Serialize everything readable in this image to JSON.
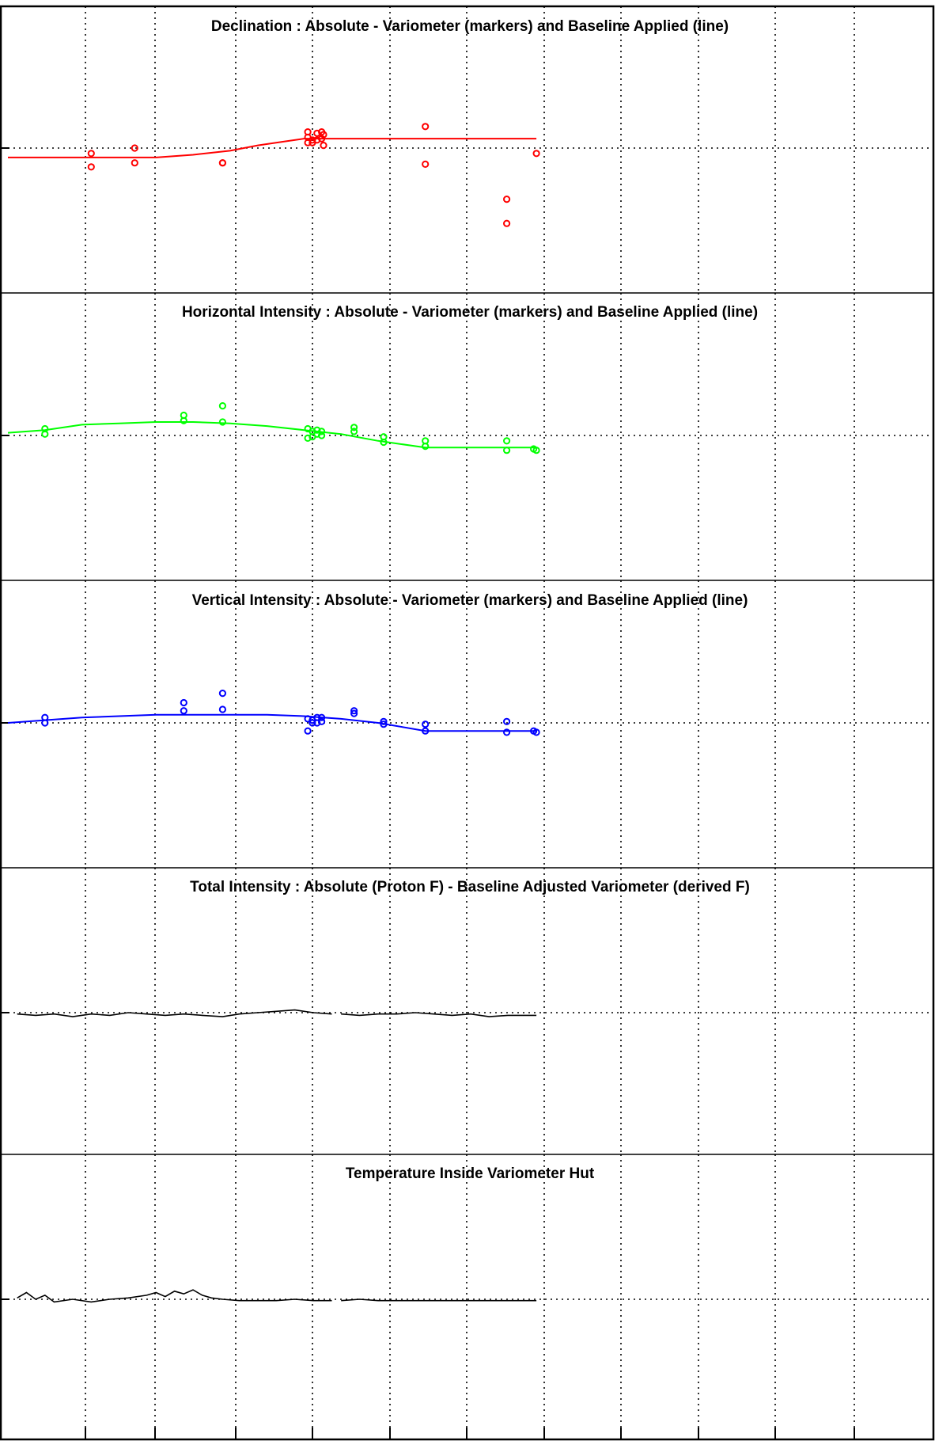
{
  "chart_data": [
    {
      "type": "scatter",
      "title": "Declination : Absolute - Variometer (markers) and Baseline Applied (line)",
      "xlabel": "",
      "ylabel": "",
      "x_range": [
        0,
        1
      ],
      "y_range": [
        -1,
        1
      ],
      "reference_y": 0.0,
      "grid": true,
      "color": "#ff0000",
      "markers": {
        "name": "",
        "x": [
          0.09,
          0.09,
          0.137,
          0.137,
          0.232,
          0.232,
          0.324,
          0.324,
          0.324,
          0.329,
          0.329,
          0.334,
          0.334,
          0.339,
          0.339,
          0.341,
          0.341,
          0.451,
          0.451,
          0.539,
          0.539,
          0.571
        ],
        "y": [
          -0.04,
          -0.14,
          0.0,
          -0.11,
          -0.11,
          -0.11,
          0.12,
          0.08,
          0.04,
          0.06,
          0.04,
          0.11,
          0.06,
          0.12,
          0.07,
          0.1,
          0.02,
          0.16,
          -0.12,
          -0.38,
          -0.56,
          -0.04
        ]
      },
      "line": {
        "name": "",
        "x": [
          0.0,
          0.06,
          0.12,
          0.16,
          0.2,
          0.24,
          0.27,
          0.3,
          0.32,
          0.34,
          0.36,
          0.45,
          0.571
        ],
        "y": [
          -0.07,
          -0.07,
          -0.07,
          -0.07,
          -0.05,
          -0.02,
          0.02,
          0.05,
          0.07,
          0.07,
          0.07,
          0.07,
          0.07
        ]
      }
    },
    {
      "type": "scatter",
      "title": "Horizontal Intensity : Absolute - Variometer (markers) and Baseline Applied (line)",
      "xlabel": "",
      "ylabel": "",
      "x_range": [
        0,
        1
      ],
      "y_range": [
        -1,
        1
      ],
      "reference_y": 0.0,
      "grid": true,
      "color": "#00ff00",
      "markers": {
        "name": "",
        "x": [
          0.04,
          0.04,
          0.19,
          0.19,
          0.232,
          0.232,
          0.324,
          0.324,
          0.329,
          0.329,
          0.334,
          0.334,
          0.339,
          0.339,
          0.374,
          0.374,
          0.406,
          0.406,
          0.451,
          0.451,
          0.539,
          0.539,
          0.568,
          0.571
        ],
        "y": [
          0.05,
          0.01,
          0.15,
          0.11,
          0.22,
          0.1,
          0.05,
          -0.02,
          0.03,
          -0.01,
          0.04,
          0.01,
          0.03,
          0.0,
          0.06,
          0.03,
          -0.01,
          -0.05,
          -0.04,
          -0.08,
          -0.04,
          -0.11,
          -0.1,
          -0.11
        ]
      },
      "line": {
        "name": "",
        "x": [
          0.0,
          0.04,
          0.08,
          0.12,
          0.16,
          0.2,
          0.24,
          0.28,
          0.32,
          0.36,
          0.4,
          0.451,
          0.5,
          0.571
        ],
        "y": [
          0.02,
          0.04,
          0.08,
          0.09,
          0.1,
          0.1,
          0.09,
          0.07,
          0.04,
          0.01,
          -0.04,
          -0.09,
          -0.09,
          -0.09
        ]
      }
    },
    {
      "type": "scatter",
      "title": "Vertical Intensity : Absolute - Variometer (markers) and Baseline Applied (line)",
      "xlabel": "",
      "ylabel": "",
      "x_range": [
        0,
        1
      ],
      "y_range": [
        -1,
        1
      ],
      "reference_y": 0.0,
      "grid": true,
      "color": "#0000ff",
      "markers": {
        "name": "",
        "x": [
          0.04,
          0.04,
          0.19,
          0.19,
          0.232,
          0.232,
          0.324,
          0.324,
          0.329,
          0.329,
          0.334,
          0.334,
          0.339,
          0.339,
          0.374,
          0.374,
          0.406,
          0.406,
          0.451,
          0.451,
          0.539,
          0.539,
          0.568,
          0.571
        ],
        "y": [
          0.04,
          0.0,
          0.15,
          0.09,
          0.22,
          0.1,
          0.03,
          -0.06,
          0.02,
          0.0,
          0.04,
          0.0,
          0.04,
          0.01,
          0.09,
          0.07,
          0.01,
          -0.01,
          -0.01,
          -0.06,
          0.01,
          -0.07,
          -0.06,
          -0.07
        ]
      },
      "line": {
        "name": "",
        "x": [
          0.0,
          0.04,
          0.08,
          0.12,
          0.16,
          0.2,
          0.24,
          0.28,
          0.32,
          0.36,
          0.4,
          0.451,
          0.5,
          0.571
        ],
        "y": [
          0.0,
          0.02,
          0.04,
          0.05,
          0.06,
          0.06,
          0.06,
          0.06,
          0.05,
          0.03,
          0.0,
          -0.06,
          -0.06,
          -0.06
        ]
      }
    },
    {
      "type": "line",
      "title": "Total Intensity : Absolute (Proton F) - Baseline Adjusted Variometer (derived F)",
      "xlabel": "",
      "ylabel": "",
      "x_range": [
        0,
        1
      ],
      "y_range": [
        -1,
        1
      ],
      "reference_y": 0.0,
      "grid": true,
      "color": "#000000",
      "series": [
        {
          "name": "",
          "x": [
            0.01,
            0.03,
            0.05,
            0.07,
            0.09,
            0.11,
            0.13,
            0.15,
            0.17,
            0.19,
            0.21,
            0.232,
            0.25,
            0.27,
            0.29,
            0.31,
            0.33,
            0.35
          ],
          "y": [
            -0.01,
            -0.02,
            -0.01,
            -0.03,
            -0.01,
            -0.02,
            0.0,
            -0.01,
            -0.02,
            -0.01,
            -0.02,
            -0.03,
            -0.01,
            0.0,
            0.01,
            0.02,
            0.0,
            -0.01
          ]
        },
        {
          "name": "",
          "x": [
            0.36,
            0.38,
            0.4,
            0.42,
            0.44,
            0.46,
            0.48,
            0.5,
            0.52,
            0.54,
            0.56,
            0.571
          ],
          "y": [
            -0.01,
            -0.02,
            -0.01,
            -0.01,
            0.0,
            -0.01,
            -0.02,
            -0.01,
            -0.03,
            -0.02,
            -0.02,
            -0.02
          ]
        }
      ]
    },
    {
      "type": "line",
      "title": "Temperature Inside Variometer Hut",
      "xlabel": "",
      "ylabel": "",
      "x_range": [
        0,
        1
      ],
      "y_range": [
        -1,
        1
      ],
      "reference_y": 0.0,
      "grid": true,
      "color": "#000000",
      "series": [
        {
          "name": "",
          "x": [
            0.01,
            0.02,
            0.03,
            0.04,
            0.05,
            0.07,
            0.09,
            0.11,
            0.13,
            0.15,
            0.16,
            0.17,
            0.18,
            0.19,
            0.2,
            0.21,
            0.22,
            0.232,
            0.25,
            0.27,
            0.29,
            0.31,
            0.33,
            0.35
          ],
          "y": [
            0.01,
            0.05,
            0.0,
            0.03,
            -0.02,
            0.0,
            -0.02,
            0.0,
            0.01,
            0.03,
            0.05,
            0.02,
            0.06,
            0.04,
            0.07,
            0.03,
            0.01,
            0.0,
            -0.01,
            -0.01,
            -0.01,
            0.0,
            -0.01,
            -0.01
          ]
        },
        {
          "name": "",
          "x": [
            0.36,
            0.38,
            0.4,
            0.42,
            0.44,
            0.46,
            0.48,
            0.5,
            0.52,
            0.54,
            0.56,
            0.571
          ],
          "y": [
            -0.01,
            0.0,
            -0.01,
            -0.01,
            -0.01,
            -0.01,
            -0.01,
            -0.01,
            -0.01,
            -0.01,
            -0.01,
            -0.01
          ]
        }
      ]
    }
  ]
}
